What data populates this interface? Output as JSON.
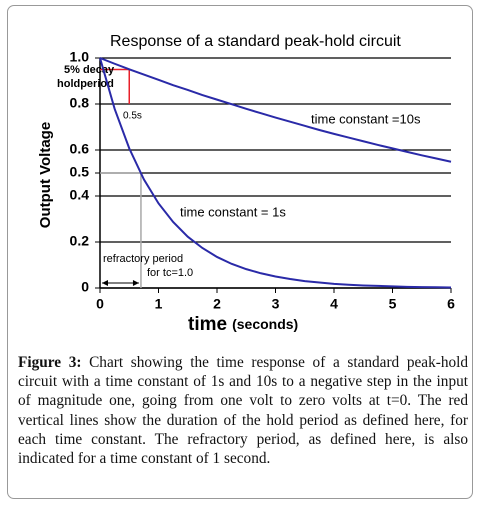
{
  "chart_data": {
    "type": "line",
    "title": "Response of a standard peak-hold circuit",
    "ylabel": "Output Voltage",
    "xlabel": "time",
    "xlabel_units": "(seconds)",
    "x": [
      0,
      0.25,
      0.5,
      0.75,
      1,
      1.25,
      1.5,
      1.75,
      2,
      2.25,
      2.5,
      2.75,
      3,
      3.25,
      3.5,
      3.75,
      4,
      4.25,
      4.5,
      4.75,
      5,
      5.25,
      5.5,
      5.75,
      6
    ],
    "series": [
      {
        "name": "time constant =10s",
        "color": "#2a2aa8",
        "values": [
          1,
          0.975,
          0.951,
          0.928,
          0.905,
          0.882,
          0.861,
          0.839,
          0.819,
          0.799,
          0.779,
          0.76,
          0.741,
          0.723,
          0.705,
          0.687,
          0.67,
          0.654,
          0.638,
          0.622,
          0.607,
          0.592,
          0.577,
          0.563,
          0.549
        ]
      },
      {
        "name": "time constant = 1s",
        "color": "#2a2aa8",
        "values": [
          1,
          0.779,
          0.607,
          0.472,
          0.368,
          0.287,
          0.223,
          0.174,
          0.135,
          0.105,
          0.082,
          0.064,
          0.05,
          0.039,
          0.03,
          0.024,
          0.018,
          0.014,
          0.011,
          0.009,
          0.007,
          0.005,
          0.004,
          0.003,
          0.002
        ]
      }
    ],
    "xlim": [
      0,
      6
    ],
    "xticks": [
      0,
      1,
      2,
      3,
      4,
      5,
      6
    ],
    "ylim": [
      0,
      1
    ],
    "yticks": [
      0,
      0.2,
      0.4,
      0.5,
      0.6,
      0.8,
      {
        "value": 1,
        "label": "1.0"
      }
    ],
    "grid": true,
    "markers": [
      {
        "color": "#e8202a",
        "x": 0.5,
        "y": 0.95,
        "y_end": 0.8,
        "labels": [
          "5% decay",
          "holdperiod",
          "0.5s"
        ]
      },
      {
        "color": "#a8a8a8",
        "x": 0.7,
        "y": 0.5,
        "y_end": 0,
        "labels": [
          "refractory period",
          "for tc=1.0"
        ]
      }
    ]
  },
  "caption": {
    "label": "Figure 3:",
    "text": "Chart showing the time response of a standard peak-hold circuit with a time constant of 1s and 10s to a negative step in the input of magnitude one, going from one volt to zero volts at t=0. The red vertical lines show the duration of the hold period as defined here, for each time constant. The refractory period, as defined here, is also indicated for a time constant of 1 second."
  }
}
